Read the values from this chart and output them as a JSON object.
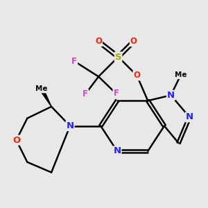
{
  "background_color": "#e8e8e8",
  "bg_color": "#e8e8e8",
  "atom_colors": {
    "F": "#cc44cc",
    "S": "#aaaa00",
    "O": "#ff2200",
    "N": "#2222ff",
    "C": "#000000"
  },
  "lw": 1.8
}
